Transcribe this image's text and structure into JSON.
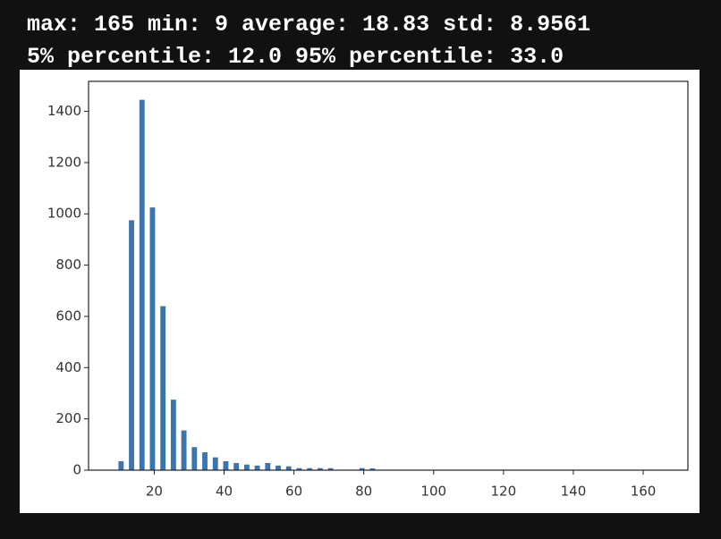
{
  "output_lines": [
    "max: 165 min: 9 average: 18.83 std: 8.9561",
    "5% percentile: 12.0 95% percentile: 33.0"
  ],
  "chart_data": {
    "type": "histogram",
    "color": "#3b75af",
    "bins": [
      9,
      12,
      15,
      18,
      21,
      24,
      27,
      30,
      33,
      36,
      39,
      42,
      45,
      48,
      51,
      54,
      57,
      60,
      63,
      66,
      69,
      72,
      75,
      78,
      81,
      84,
      87,
      90,
      93,
      96,
      99,
      102,
      105,
      108,
      111,
      114,
      117,
      120,
      123,
      126,
      129,
      132,
      135,
      138,
      141,
      144,
      147,
      150,
      153,
      156,
      159,
      162,
      165
    ],
    "values": [
      35,
      975,
      1445,
      1025,
      640,
      275,
      155,
      90,
      70,
      50,
      35,
      28,
      22,
      18,
      28,
      18,
      15,
      8,
      8,
      8,
      8,
      0,
      0,
      8,
      7,
      0,
      0,
      0,
      0,
      0,
      0,
      0,
      0,
      0,
      0,
      0,
      0,
      0,
      0,
      0,
      0,
      0,
      0,
      0,
      0,
      0,
      0,
      0,
      0,
      0,
      0,
      1
    ],
    "xlim": [
      1.2,
      172.8
    ],
    "ylim": [
      0,
      1517
    ],
    "xticks": [
      20,
      40,
      60,
      80,
      100,
      120,
      140,
      160
    ],
    "yticks": [
      0,
      200,
      400,
      600,
      800,
      1000,
      1200,
      1400
    ]
  }
}
